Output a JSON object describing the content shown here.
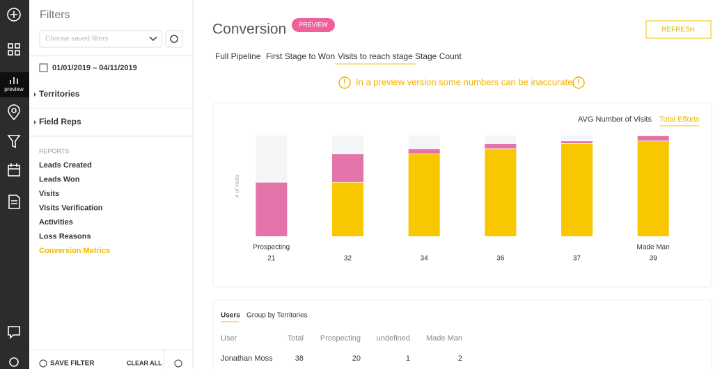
{
  "nav": {
    "active_label": "preview"
  },
  "filters": {
    "title": "Filters",
    "saved_placeholder": "Choose saved filters",
    "date_range": "01/01/2019 – 04/11/2019",
    "groups": [
      "Territories",
      "Field Reps"
    ],
    "reports_heading": "REPORTS",
    "reports": [
      "Leads Created",
      "Leads Won",
      "Visits",
      "Visits Verification",
      "Activities",
      "Loss Reasons",
      "Conversion Metrics"
    ],
    "save": "SAVE FILTER",
    "clear": "CLEAR ALL"
  },
  "header": {
    "title": "Conversion",
    "badge": "PREVIEW",
    "refresh": "REFRESH"
  },
  "tabs": [
    "Full Pipeline",
    "First Stage to Won",
    "Visits to reach stage",
    "Stage Count"
  ],
  "warning": "In a preview version some numbers can be inaccurate",
  "chart_data": {
    "type": "bar",
    "stacked": true,
    "y_label": "# of visits",
    "toggles": [
      "AVG Number of Visits",
      "Total Efforts"
    ],
    "categories": [
      "Prospecting",
      null,
      null,
      null,
      null,
      "Made Man"
    ],
    "totals": [
      21,
      32,
      34,
      36,
      37,
      39
    ],
    "series": [
      {
        "color": "#f8c700",
        "values": [
          0,
          21,
          32,
          34,
          36,
          37
        ]
      },
      {
        "color": "#e473a9",
        "values": [
          21,
          11,
          2,
          2,
          1,
          2
        ]
      }
    ]
  },
  "table": {
    "tabs": [
      "Users",
      "Group by Territories"
    ],
    "header": [
      "User",
      "Total",
      "Prospecting",
      "undefined",
      "Made Man"
    ],
    "rows": [
      [
        "Jonathan Moss",
        38,
        20,
        1,
        2
      ]
    ]
  }
}
